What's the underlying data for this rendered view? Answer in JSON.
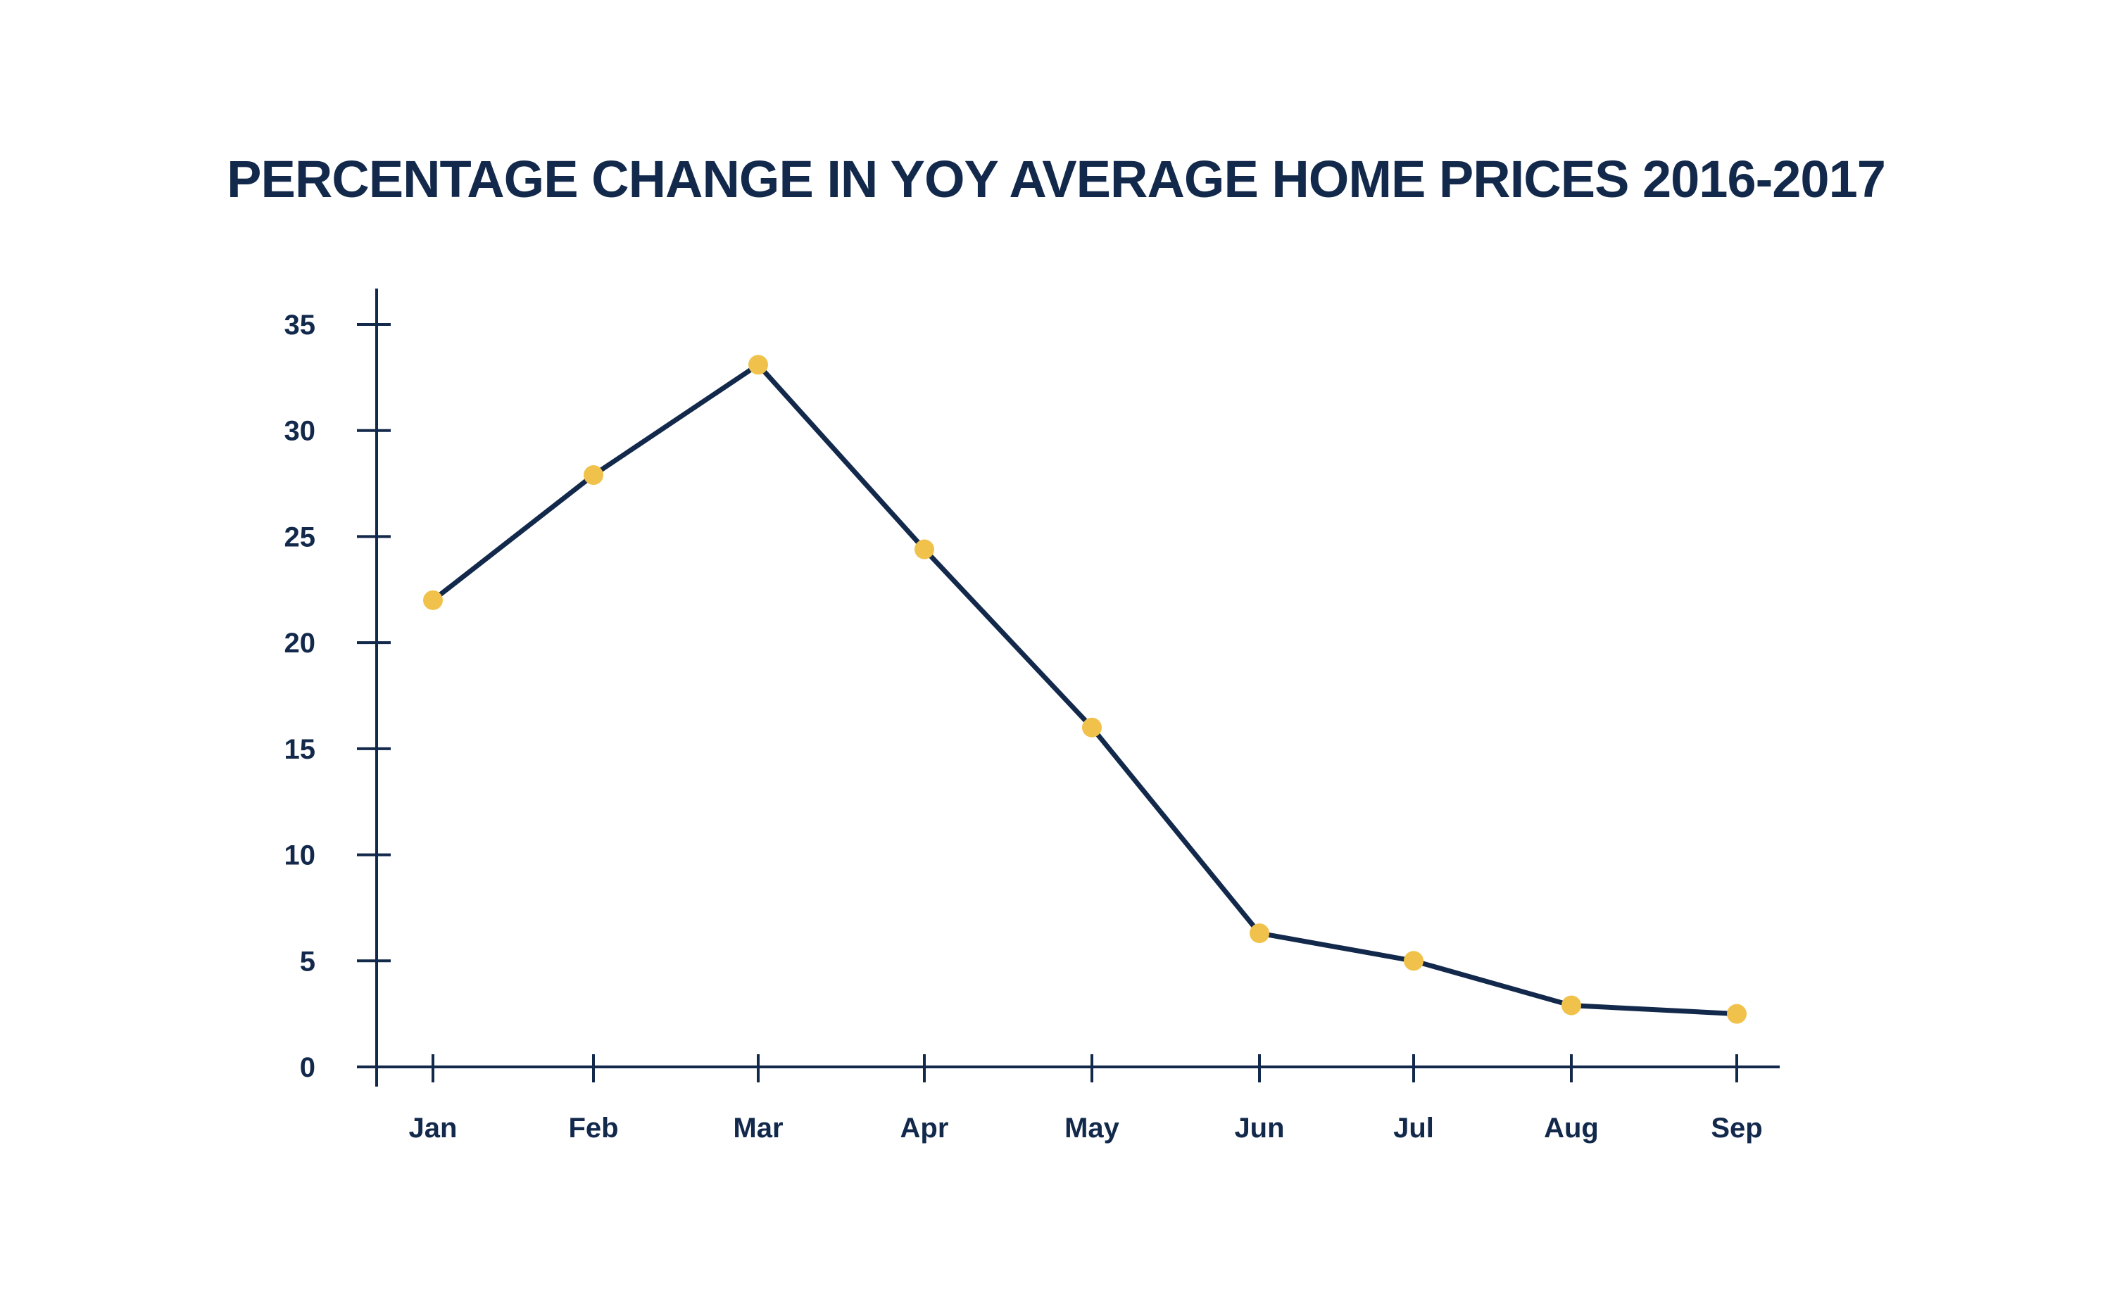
{
  "colors": {
    "line": "#13294b",
    "marker": "#f0c24b",
    "text": "#13294b",
    "background": "#ffffff"
  },
  "chart_data": {
    "type": "line",
    "title": "PERCENTAGE CHANGE IN YOY AVERAGE HOME PRICES 2016-2017",
    "xlabel": "",
    "ylabel": "",
    "categories": [
      "Jan",
      "Feb",
      "Mar",
      "Apr",
      "May",
      "Jun",
      "Jul",
      "Aug",
      "Sep"
    ],
    "series": [
      {
        "values": [
          22.0,
          27.9,
          33.1,
          24.4,
          16.0,
          6.3,
          5.0,
          2.9,
          2.5
        ]
      }
    ],
    "yticks": [
      0,
      5,
      10,
      15,
      20,
      25,
      30,
      35
    ],
    "ylim": [
      0,
      35
    ],
    "grid": false,
    "legend": "none",
    "markers": true
  }
}
